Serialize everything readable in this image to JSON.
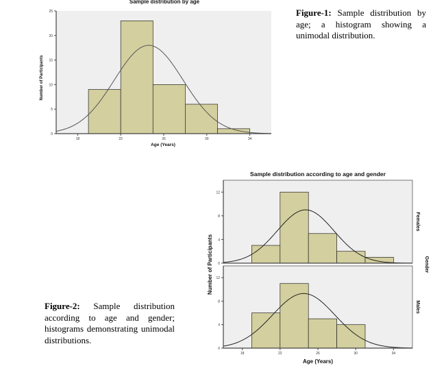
{
  "captions": {
    "fig1_label": "Figure-1:",
    "fig1_text": "Sample distribution by age; a histogram showing a unimodal distribution.",
    "fig2_label": "Figure-2:",
    "fig2_text": "Sample distribution according to age and gender; histograms demonstrating unimodal distributions."
  },
  "chart_data": [
    {
      "type": "bar",
      "title": "Sample distribution by age",
      "xlabel": "Age (Years)",
      "ylabel": "Number of Participants",
      "xlim": [
        16,
        36
      ],
      "ylim": [
        0,
        25
      ],
      "x_ticks": [
        18,
        22,
        26,
        30,
        34
      ],
      "y_ticks": [
        0,
        5,
        10,
        15,
        20,
        25
      ],
      "bins": [
        {
          "from": 19,
          "to": 22,
          "value": 9
        },
        {
          "from": 22,
          "to": 25,
          "value": 23
        },
        {
          "from": 25,
          "to": 28,
          "value": 10
        },
        {
          "from": 28,
          "to": 31,
          "value": 6
        },
        {
          "from": 31,
          "to": 34,
          "value": 1
        }
      ],
      "normal_curve": {
        "mean": 24.6,
        "sd": 3.2,
        "peak": 18
      },
      "grid": false,
      "bar_color": "#d3cf9e",
      "background": "#efefef"
    },
    {
      "type": "bar",
      "title": "Sample distribution according to age and gender",
      "xlabel": "Age (Years)",
      "ylabel": "Number of Participants",
      "group_label": "Gender",
      "xlim": [
        16,
        36
      ],
      "x_ticks": [
        18,
        22,
        26,
        30,
        34
      ],
      "panels": [
        {
          "name": "Females",
          "ylim": [
            0,
            14
          ],
          "y_ticks": [
            0,
            4,
            8,
            12
          ],
          "bins": [
            {
              "from": 19,
              "to": 22,
              "value": 3
            },
            {
              "from": 22,
              "to": 25,
              "value": 12
            },
            {
              "from": 25,
              "to": 28,
              "value": 5
            },
            {
              "from": 28,
              "to": 31,
              "value": 2
            },
            {
              "from": 31,
              "to": 34,
              "value": 1
            }
          ],
          "normal_curve": {
            "mean": 24.7,
            "sd": 3.0,
            "peak": 9
          }
        },
        {
          "name": "Males",
          "ylim": [
            0,
            14
          ],
          "y_ticks": [
            0,
            4,
            8,
            12
          ],
          "bins": [
            {
              "from": 19,
              "to": 22,
              "value": 6
            },
            {
              "from": 22,
              "to": 25,
              "value": 11
            },
            {
              "from": 25,
              "to": 28,
              "value": 5
            },
            {
              "from": 28,
              "to": 31,
              "value": 4
            }
          ],
          "normal_curve": {
            "mean": 24.5,
            "sd": 3.3,
            "peak": 9.3
          }
        }
      ],
      "grid": false,
      "bar_color": "#d3cf9e",
      "background": "#efefef"
    }
  ]
}
